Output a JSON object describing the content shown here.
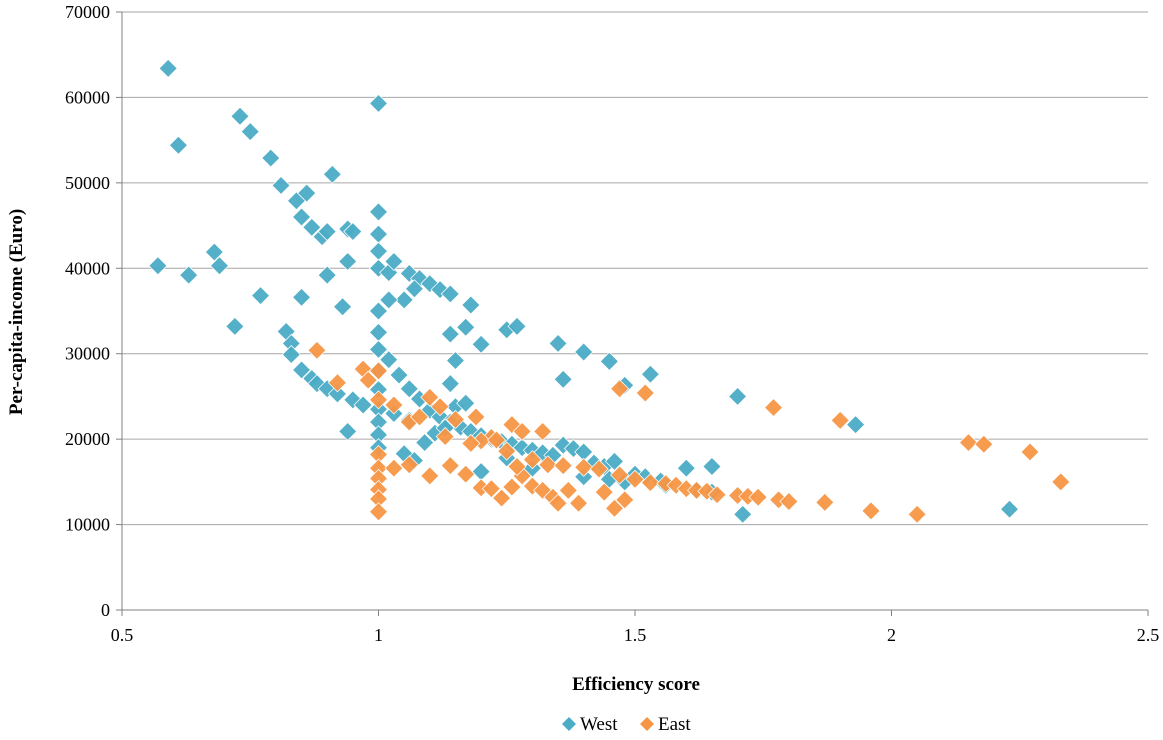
{
  "chart_data": {
    "type": "scatter",
    "title": "",
    "xlabel": "Efficiency score",
    "ylabel": "Per-capita-income (Euro)",
    "xlim": [
      0.5,
      2.5
    ],
    "ylim": [
      0,
      70000
    ],
    "x_ticks": [
      "0.5",
      "1",
      "1.5",
      "2",
      "2.5"
    ],
    "y_ticks": [
      "0",
      "10000",
      "20000",
      "30000",
      "40000",
      "50000",
      "60000",
      "70000"
    ],
    "grid": "horizontal",
    "legend_position": "bottom",
    "series": [
      {
        "name": "West",
        "color": "#4bacc6",
        "marker": "diamond",
        "points": [
          [
            0.59,
            63400
          ],
          [
            1.0,
            59300
          ],
          [
            0.73,
            57800
          ],
          [
            0.75,
            56000
          ],
          [
            0.61,
            54400
          ],
          [
            0.79,
            52900
          ],
          [
            0.81,
            49700
          ],
          [
            0.91,
            51000
          ],
          [
            0.84,
            47900
          ],
          [
            0.86,
            48800
          ],
          [
            0.85,
            46000
          ],
          [
            0.87,
            44800
          ],
          [
            0.89,
            43700
          ],
          [
            0.9,
            44300
          ],
          [
            0.94,
            44600
          ],
          [
            0.95,
            44300
          ],
          [
            1.0,
            46600
          ],
          [
            1.0,
            44000
          ],
          [
            1.0,
            42000
          ],
          [
            1.0,
            40000
          ],
          [
            1.02,
            39500
          ],
          [
            1.03,
            40800
          ],
          [
            1.06,
            39400
          ],
          [
            1.08,
            38800
          ],
          [
            1.1,
            38200
          ],
          [
            1.12,
            37500
          ],
          [
            1.14,
            37000
          ],
          [
            1.07,
            37600
          ],
          [
            1.05,
            36300
          ],
          [
            0.57,
            40300
          ],
          [
            0.63,
            39200
          ],
          [
            0.68,
            41900
          ],
          [
            0.69,
            40300
          ],
          [
            0.77,
            36800
          ],
          [
            0.85,
            36600
          ],
          [
            0.9,
            39200
          ],
          [
            0.94,
            40800
          ],
          [
            0.93,
            35500
          ],
          [
            0.72,
            33200
          ],
          [
            0.82,
            32600
          ],
          [
            0.83,
            31200
          ],
          [
            1.0,
            35000
          ],
          [
            1.0,
            32500
          ],
          [
            1.02,
            36300
          ],
          [
            1.14,
            32300
          ],
          [
            1.17,
            33100
          ],
          [
            1.18,
            35700
          ],
          [
            1.2,
            31100
          ],
          [
            1.15,
            29200
          ],
          [
            1.25,
            32800
          ],
          [
            1.27,
            33200
          ],
          [
            1.35,
            31200
          ],
          [
            1.4,
            30200
          ],
          [
            1.45,
            29100
          ],
          [
            1.36,
            27000
          ],
          [
            1.48,
            26300
          ],
          [
            1.53,
            27600
          ],
          [
            1.7,
            25000
          ],
          [
            1.93,
            21700
          ],
          [
            2.23,
            11800
          ],
          [
            1.71,
            11200
          ],
          [
            1.6,
            16600
          ],
          [
            1.65,
            16800
          ],
          [
            0.83,
            29900
          ],
          [
            0.85,
            28100
          ],
          [
            0.87,
            27100
          ],
          [
            0.88,
            26500
          ],
          [
            0.9,
            25900
          ],
          [
            0.92,
            25300
          ],
          [
            0.95,
            24600
          ],
          [
            0.97,
            24000
          ],
          [
            0.94,
            20900
          ],
          [
            1.0,
            30500
          ],
          [
            1.0,
            28000
          ],
          [
            1.0,
            25800
          ],
          [
            1.0,
            23500
          ],
          [
            1.0,
            22000
          ],
          [
            1.0,
            20500
          ],
          [
            1.0,
            19000
          ],
          [
            1.02,
            29300
          ],
          [
            1.04,
            27500
          ],
          [
            1.06,
            25900
          ],
          [
            1.08,
            24700
          ],
          [
            1.1,
            23400
          ],
          [
            1.12,
            22600
          ],
          [
            1.14,
            22000
          ],
          [
            1.16,
            21400
          ],
          [
            1.18,
            20900
          ],
          [
            1.2,
            20400
          ],
          [
            1.22,
            20000
          ],
          [
            1.24,
            19700
          ],
          [
            1.26,
            19400
          ],
          [
            1.28,
            19000
          ],
          [
            1.3,
            18700
          ],
          [
            1.32,
            18400
          ],
          [
            1.34,
            18100
          ],
          [
            1.36,
            19300
          ],
          [
            1.38,
            18900
          ],
          [
            1.4,
            18500
          ],
          [
            1.42,
            17200
          ],
          [
            1.44,
            16800
          ],
          [
            1.46,
            17400
          ],
          [
            1.5,
            15900
          ],
          [
            1.52,
            15600
          ],
          [
            1.55,
            15100
          ],
          [
            1.05,
            18300
          ],
          [
            1.07,
            17500
          ],
          [
            1.09,
            19600
          ],
          [
            1.11,
            20700
          ],
          [
            1.13,
            21300
          ],
          [
            1.15,
            23800
          ],
          [
            1.17,
            24200
          ],
          [
            1.14,
            26500
          ],
          [
            1.06,
            22200
          ],
          [
            1.03,
            23000
          ],
          [
            1.2,
            16200
          ],
          [
            1.25,
            17800
          ],
          [
            1.3,
            16600
          ],
          [
            1.4,
            15600
          ],
          [
            1.45,
            15300
          ],
          [
            1.48,
            15000
          ],
          [
            1.56,
            14600
          ],
          [
            1.62,
            14100
          ],
          [
            1.65,
            13800
          ]
        ]
      },
      {
        "name": "East",
        "color": "#f79646",
        "marker": "diamond",
        "points": [
          [
            0.88,
            30400
          ],
          [
            0.97,
            28200
          ],
          [
            1.0,
            28000
          ],
          [
            0.92,
            26600
          ],
          [
            0.98,
            26900
          ],
          [
            1.0,
            24600
          ],
          [
            1.03,
            24000
          ],
          [
            1.06,
            22000
          ],
          [
            1.08,
            22600
          ],
          [
            1.1,
            24900
          ],
          [
            1.12,
            23800
          ],
          [
            1.15,
            22300
          ],
          [
            1.19,
            22600
          ],
          [
            1.22,
            20200
          ],
          [
            1.26,
            21700
          ],
          [
            1.28,
            20900
          ],
          [
            1.32,
            20900
          ],
          [
            1.47,
            25900
          ],
          [
            1.52,
            25400
          ],
          [
            1.77,
            23700
          ],
          [
            1.9,
            22200
          ],
          [
            2.15,
            19600
          ],
          [
            2.18,
            19400
          ],
          [
            2.27,
            18500
          ],
          [
            2.33,
            15000
          ],
          [
            1.0,
            18200
          ],
          [
            1.0,
            16600
          ],
          [
            1.0,
            15400
          ],
          [
            1.0,
            14100
          ],
          [
            1.0,
            13000
          ],
          [
            1.0,
            11500
          ],
          [
            1.03,
            16600
          ],
          [
            1.06,
            17000
          ],
          [
            1.1,
            15700
          ],
          [
            1.14,
            16900
          ],
          [
            1.17,
            15900
          ],
          [
            1.2,
            14300
          ],
          [
            1.22,
            14200
          ],
          [
            1.24,
            13100
          ],
          [
            1.26,
            14400
          ],
          [
            1.28,
            15700
          ],
          [
            1.3,
            14500
          ],
          [
            1.32,
            14000
          ],
          [
            1.34,
            13200
          ],
          [
            1.35,
            12500
          ],
          [
            1.37,
            14000
          ],
          [
            1.39,
            12500
          ],
          [
            1.44,
            13800
          ],
          [
            1.46,
            11900
          ],
          [
            1.48,
            12900
          ],
          [
            1.5,
            15300
          ],
          [
            1.53,
            14900
          ],
          [
            1.56,
            14800
          ],
          [
            1.58,
            14600
          ],
          [
            1.6,
            14200
          ],
          [
            1.62,
            14000
          ],
          [
            1.64,
            13900
          ],
          [
            1.66,
            13500
          ],
          [
            1.7,
            13400
          ],
          [
            1.72,
            13300
          ],
          [
            1.74,
            13200
          ],
          [
            1.78,
            12900
          ],
          [
            1.8,
            12700
          ],
          [
            1.87,
            12600
          ],
          [
            1.96,
            11600
          ],
          [
            2.05,
            11200
          ],
          [
            1.2,
            19800
          ],
          [
            1.25,
            18600
          ],
          [
            1.3,
            17600
          ],
          [
            1.33,
            17000
          ],
          [
            1.36,
            16900
          ],
          [
            1.4,
            16700
          ],
          [
            1.43,
            16500
          ],
          [
            1.47,
            15800
          ],
          [
            1.23,
            19900
          ],
          [
            1.27,
            16800
          ],
          [
            1.18,
            19500
          ],
          [
            1.13,
            20300
          ]
        ]
      }
    ]
  }
}
